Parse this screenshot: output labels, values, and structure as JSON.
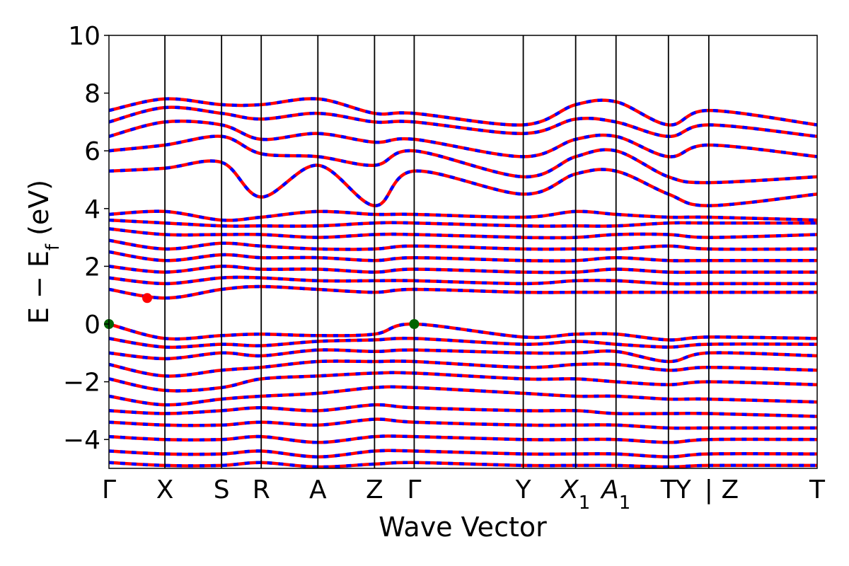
{
  "chart_data": {
    "type": "line",
    "title": "",
    "xlabel": "Wave Vector",
    "ylabel": "E − E",
    "ylabel_sub": "f",
    "ylabel_unit": " (eV)",
    "ylim": [
      -5,
      10
    ],
    "yticks": [
      -4,
      -2,
      0,
      2,
      4,
      6,
      8,
      10
    ],
    "yticks_text": [
      "−4",
      "−2",
      "0",
      "2",
      "4",
      "6",
      "8",
      "10"
    ],
    "kpath_positions": [
      0,
      0.079,
      0.159,
      0.215,
      0.295,
      0.375,
      0.431,
      0.585,
      0.659,
      0.716,
      0.79,
      0.847,
      1.0
    ],
    "kpoint_labels": [
      {
        "text": "Γ",
        "pos": 0
      },
      {
        "text": "X",
        "pos": 0.079
      },
      {
        "text": "S",
        "pos": 0.159
      },
      {
        "text": "R",
        "pos": 0.215
      },
      {
        "text": "A",
        "pos": 0.295
      },
      {
        "text": "Z",
        "pos": 0.375
      },
      {
        "text": "Γ",
        "pos": 0.431
      },
      {
        "text": "Y",
        "pos": 0.585
      },
      {
        "text": "X",
        "sub": "1",
        "italic": true,
        "pos": 0.659
      },
      {
        "text": "A",
        "sub": "1",
        "italic": true,
        "pos": 0.716
      },
      {
        "text": "T",
        "pos": 0.79
      },
      {
        "text": "Y",
        "pos": 0.811
      },
      {
        "text": "|",
        "pos": 0.847
      },
      {
        "text": "Z",
        "pos": 0.877
      },
      {
        "text": "T",
        "pos": 1.0
      }
    ],
    "series": [
      {
        "style": "solid",
        "color": "#ff0000"
      },
      {
        "style": "dashed",
        "color": "#0000ff"
      }
    ],
    "bands_valence": [
      {
        "k": [
          0,
          0.079,
          0.159,
          0.215,
          0.295,
          0.375,
          0.431,
          0.585,
          0.659,
          0.716,
          0.79,
          0.847,
          1.0
        ],
        "E": [
          0.0,
          -0.5,
          -0.4,
          -0.35,
          -0.4,
          -0.35,
          0.0,
          -0.45,
          -0.35,
          -0.35,
          -0.55,
          -0.45,
          -0.5
        ]
      },
      {
        "k": [
          0,
          0.079,
          0.159,
          0.215,
          0.295,
          0.375,
          0.431,
          0.585,
          0.659,
          0.716,
          0.79,
          0.847,
          1.0
        ],
        "E": [
          -0.5,
          -0.8,
          -0.7,
          -0.75,
          -0.6,
          -0.55,
          -0.5,
          -0.7,
          -0.6,
          -0.7,
          -0.8,
          -0.7,
          -0.7
        ]
      },
      {
        "k": [
          0,
          0.079,
          0.159,
          0.215,
          0.295,
          0.375,
          0.431,
          0.585,
          0.659,
          0.716,
          0.79,
          0.847,
          1.0
        ],
        "E": [
          -1.0,
          -1.2,
          -1.0,
          -1.1,
          -0.9,
          -0.95,
          -0.9,
          -1.0,
          -1.0,
          -0.95,
          -1.3,
          -1.0,
          -1.1
        ]
      },
      {
        "k": [
          0,
          0.079,
          0.159,
          0.215,
          0.295,
          0.375,
          0.431,
          0.585,
          0.659,
          0.716,
          0.79,
          0.847,
          1.0
        ],
        "E": [
          -1.4,
          -1.8,
          -1.6,
          -1.5,
          -1.3,
          -1.3,
          -1.3,
          -1.5,
          -1.4,
          -1.4,
          -1.6,
          -1.5,
          -1.6
        ]
      },
      {
        "k": [
          0,
          0.079,
          0.159,
          0.215,
          0.295,
          0.375,
          0.431,
          0.585,
          0.659,
          0.716,
          0.79,
          0.847,
          1.0
        ],
        "E": [
          -1.9,
          -2.3,
          -2.2,
          -1.9,
          -1.8,
          -1.7,
          -1.7,
          -1.9,
          -1.9,
          -2.0,
          -2.1,
          -2.0,
          -2.1
        ]
      },
      {
        "k": [
          0,
          0.079,
          0.159,
          0.215,
          0.295,
          0.375,
          0.431,
          0.585,
          0.659,
          0.716,
          0.79,
          0.847,
          1.0
        ],
        "E": [
          -2.5,
          -2.8,
          -2.6,
          -2.5,
          -2.4,
          -2.2,
          -2.2,
          -2.4,
          -2.5,
          -2.5,
          -2.6,
          -2.6,
          -2.7
        ]
      },
      {
        "k": [
          0,
          0.079,
          0.159,
          0.215,
          0.295,
          0.375,
          0.431,
          0.585,
          0.659,
          0.716,
          0.79,
          0.847,
          1.0
        ],
        "E": [
          -3.0,
          -3.1,
          -3.0,
          -2.9,
          -3.0,
          -2.8,
          -2.9,
          -3.0,
          -3.0,
          -3.1,
          -3.1,
          -3.1,
          -3.2
        ]
      },
      {
        "k": [
          0,
          0.079,
          0.159,
          0.215,
          0.295,
          0.375,
          0.431,
          0.585,
          0.659,
          0.716,
          0.79,
          0.847,
          1.0
        ],
        "E": [
          -3.4,
          -3.5,
          -3.5,
          -3.4,
          -3.5,
          -3.3,
          -3.4,
          -3.5,
          -3.5,
          -3.5,
          -3.6,
          -3.6,
          -3.6
        ]
      },
      {
        "k": [
          0,
          0.079,
          0.159,
          0.215,
          0.295,
          0.375,
          0.431,
          0.585,
          0.659,
          0.716,
          0.79,
          0.847,
          1.0
        ],
        "E": [
          -3.9,
          -4.0,
          -4.0,
          -3.9,
          -4.1,
          -3.9,
          -3.9,
          -4.0,
          -4.0,
          -4.0,
          -4.1,
          -4.0,
          -4.0
        ]
      },
      {
        "k": [
          0,
          0.079,
          0.159,
          0.215,
          0.295,
          0.375,
          0.431,
          0.585,
          0.659,
          0.716,
          0.79,
          0.847,
          1.0
        ],
        "E": [
          -4.4,
          -4.5,
          -4.5,
          -4.4,
          -4.6,
          -4.4,
          -4.4,
          -4.5,
          -4.5,
          -4.5,
          -4.6,
          -4.5,
          -4.5
        ]
      },
      {
        "k": [
          0,
          0.079,
          0.159,
          0.215,
          0.295,
          0.375,
          0.431,
          0.585,
          0.659,
          0.716,
          0.79,
          0.847,
          1.0
        ],
        "E": [
          -4.8,
          -4.9,
          -4.9,
          -4.8,
          -4.95,
          -4.85,
          -4.8,
          -4.9,
          -4.9,
          -4.9,
          -4.95,
          -4.9,
          -4.9
        ]
      }
    ],
    "bands_conduction_low": [
      {
        "k": [
          0,
          0.079,
          0.159,
          0.215,
          0.295,
          0.375,
          0.431,
          0.585,
          0.659,
          0.716,
          0.79,
          0.847,
          1.0
        ],
        "E": [
          1.2,
          0.9,
          1.2,
          1.3,
          1.2,
          1.1,
          1.2,
          1.1,
          1.1,
          1.1,
          1.1,
          1.1,
          1.1
        ]
      },
      {
        "k": [
          0,
          0.079,
          0.159,
          0.215,
          0.295,
          0.375,
          0.431,
          0.585,
          0.659,
          0.716,
          0.79,
          0.847,
          1.0
        ],
        "E": [
          1.6,
          1.4,
          1.6,
          1.6,
          1.5,
          1.5,
          1.5,
          1.4,
          1.5,
          1.5,
          1.4,
          1.4,
          1.4
        ]
      },
      {
        "k": [
          0,
          0.079,
          0.159,
          0.215,
          0.295,
          0.375,
          0.431,
          0.585,
          0.659,
          0.716,
          0.79,
          0.847,
          1.0
        ],
        "E": [
          2.0,
          1.8,
          2.0,
          1.9,
          1.9,
          1.8,
          1.9,
          1.8,
          1.8,
          1.9,
          1.8,
          1.8,
          1.8
        ]
      },
      {
        "k": [
          0,
          0.079,
          0.159,
          0.215,
          0.295,
          0.375,
          0.431,
          0.585,
          0.659,
          0.716,
          0.79,
          0.847,
          1.0
        ],
        "E": [
          2.5,
          2.2,
          2.4,
          2.3,
          2.3,
          2.2,
          2.3,
          2.2,
          2.2,
          2.3,
          2.2,
          2.2,
          2.2
        ]
      },
      {
        "k": [
          0,
          0.079,
          0.159,
          0.215,
          0.295,
          0.375,
          0.431,
          0.585,
          0.659,
          0.716,
          0.79,
          0.847,
          1.0
        ],
        "E": [
          2.9,
          2.6,
          2.8,
          2.7,
          2.6,
          2.6,
          2.7,
          2.6,
          2.6,
          2.6,
          2.7,
          2.6,
          2.6
        ]
      },
      {
        "k": [
          0,
          0.079,
          0.159,
          0.215,
          0.295,
          0.375,
          0.431,
          0.585,
          0.659,
          0.716,
          0.79,
          0.847,
          1.0
        ],
        "E": [
          3.3,
          3.1,
          3.1,
          3.1,
          3.0,
          3.1,
          3.1,
          3.0,
          3.0,
          3.1,
          3.1,
          3.0,
          3.1
        ]
      },
      {
        "k": [
          0,
          0.079,
          0.159,
          0.215,
          0.295,
          0.375,
          0.431,
          0.585,
          0.659,
          0.716,
          0.79,
          0.847,
          1.0
        ],
        "E": [
          3.6,
          3.5,
          3.4,
          3.4,
          3.4,
          3.5,
          3.5,
          3.4,
          3.4,
          3.4,
          3.5,
          3.5,
          3.5
        ]
      },
      {
        "k": [
          0,
          0.079,
          0.159,
          0.215,
          0.295,
          0.375,
          0.431,
          0.585,
          0.659,
          0.716,
          0.79,
          0.847,
          1.0
        ],
        "E": [
          3.8,
          3.9,
          3.6,
          3.7,
          3.9,
          3.8,
          3.8,
          3.7,
          3.9,
          3.8,
          3.7,
          3.7,
          3.6
        ]
      }
    ],
    "bands_conduction_high": [
      {
        "k": [
          0,
          0.079,
          0.159,
          0.215,
          0.295,
          0.375,
          0.431,
          0.585,
          0.659,
          0.716,
          0.79,
          0.847,
          1.0
        ],
        "E": [
          5.3,
          5.4,
          5.6,
          4.4,
          5.5,
          4.1,
          5.3,
          4.5,
          5.2,
          5.3,
          4.5,
          4.1,
          4.5
        ]
      },
      {
        "k": [
          0,
          0.079,
          0.159,
          0.215,
          0.295,
          0.375,
          0.431,
          0.585,
          0.659,
          0.716,
          0.79,
          0.847,
          1.0
        ],
        "E": [
          6.0,
          6.2,
          6.5,
          5.9,
          5.8,
          5.5,
          6.0,
          5.1,
          5.8,
          6.0,
          5.1,
          4.9,
          5.1
        ]
      },
      {
        "k": [
          0,
          0.079,
          0.159,
          0.215,
          0.295,
          0.375,
          0.431,
          0.585,
          0.659,
          0.716,
          0.79,
          0.847,
          1.0
        ],
        "E": [
          6.5,
          7.0,
          6.9,
          6.4,
          6.6,
          6.3,
          6.4,
          5.8,
          6.4,
          6.5,
          5.8,
          6.2,
          5.8
        ]
      },
      {
        "k": [
          0,
          0.079,
          0.159,
          0.215,
          0.295,
          0.375,
          0.431,
          0.585,
          0.659,
          0.716,
          0.79,
          0.847,
          1.0
        ],
        "E": [
          7.0,
          7.5,
          7.3,
          7.1,
          7.3,
          7.0,
          7.0,
          6.6,
          7.1,
          7.0,
          6.5,
          6.9,
          6.5
        ]
      },
      {
        "k": [
          0,
          0.079,
          0.159,
          0.215,
          0.295,
          0.375,
          0.431,
          0.585,
          0.659,
          0.716,
          0.79,
          0.847,
          1.0
        ],
        "E": [
          7.4,
          7.8,
          7.6,
          7.6,
          7.8,
          7.3,
          7.3,
          6.9,
          7.6,
          7.7,
          6.9,
          7.4,
          6.9
        ]
      }
    ],
    "markers": [
      {
        "k": 0.0,
        "E": 0.0,
        "color": "#006400",
        "note": "VBM"
      },
      {
        "k": 0.431,
        "E": 0.0,
        "color": "#006400",
        "note": "VBM"
      },
      {
        "k": 0.054,
        "E": 0.9,
        "color": "#ff0000",
        "note": "CBM"
      }
    ]
  }
}
